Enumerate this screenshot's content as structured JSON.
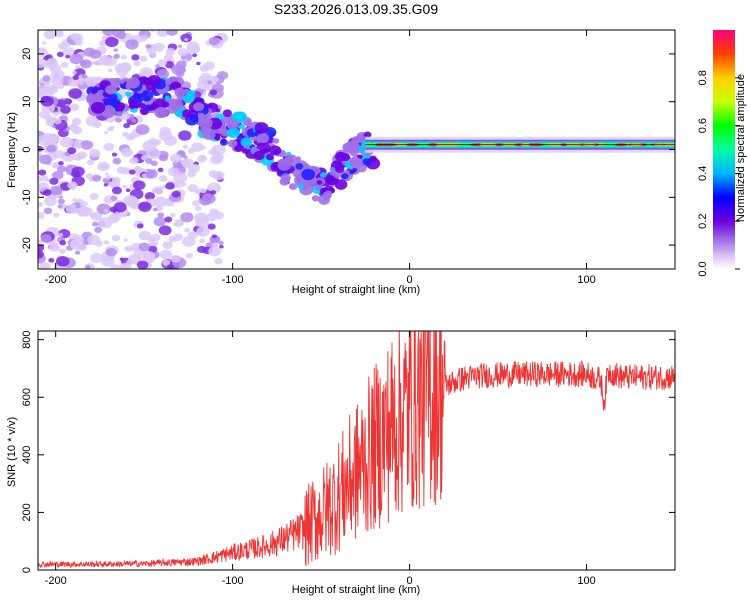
{
  "title": "S233.2026.013.09.35.G09",
  "chart_data": [
    {
      "type": "heatmap",
      "xlabel": "Height of straight line (km)",
      "ylabel": "Frequency (Hz)",
      "xlim": [
        -210,
        150
      ],
      "ylim": [
        -25,
        25
      ],
      "xticks": [
        -200,
        -100,
        0,
        100
      ],
      "yticks": [
        -20,
        -10,
        0,
        10,
        20
      ],
      "colorbar": {
        "label": "Normalized spectral amplitude",
        "range": [
          0,
          1
        ],
        "ticks": [
          "0.0",
          "0.2",
          "0.4",
          "0.6",
          "0.8"
        ]
      },
      "ridge": [
        {
          "x": -170,
          "y": 11
        },
        {
          "x": -150,
          "y": 11
        },
        {
          "x": -130,
          "y": 11
        },
        {
          "x": -115,
          "y": 6
        },
        {
          "x": -100,
          "y": 4
        },
        {
          "x": -80,
          "y": 1
        },
        {
          "x": -70,
          "y": -4
        },
        {
          "x": -60,
          "y": -6
        },
        {
          "x": -45,
          "y": -8
        },
        {
          "x": -35,
          "y": -2
        },
        {
          "x": -25,
          "y": 0
        },
        {
          "x": 0,
          "y": 1
        },
        {
          "x": 50,
          "y": 1
        },
        {
          "x": 100,
          "y": 1
        },
        {
          "x": 150,
          "y": 0.5
        }
      ]
    },
    {
      "type": "line",
      "xlabel": "Height of straight line (km)",
      "ylabel": "SNR (10 * v/v)",
      "xlim": [
        -210,
        150
      ],
      "ylim": [
        0,
        830
      ],
      "xticks": [
        -200,
        -100,
        0,
        100
      ],
      "yticks": [
        0,
        200,
        400,
        600,
        800
      ],
      "series": [
        {
          "name": "SNR",
          "color": "#ee3333",
          "x": [
            -210,
            -180,
            -150,
            -120,
            -100,
            -80,
            -70,
            -60,
            -50,
            -40,
            -30,
            -20,
            -10,
            0,
            10,
            20,
            30,
            40,
            60,
            80,
            100,
            108,
            110,
            112,
            120,
            150
          ],
          "values": [
            20,
            20,
            22,
            30,
            60,
            85,
            110,
            140,
            190,
            260,
            340,
            420,
            500,
            560,
            600,
            640,
            665,
            675,
            680,
            680,
            680,
            660,
            580,
            690,
            670,
            670
          ]
        }
      ]
    }
  ]
}
